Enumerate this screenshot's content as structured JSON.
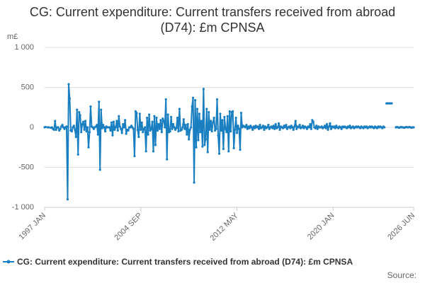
{
  "chart_data": {
    "type": "line",
    "title": "CG: Current expenditure: Current transfers received from abroad (D74): £m CPNSA",
    "y_label": "m£",
    "source": "Source:",
    "grid": true,
    "ylim": [
      -1000,
      1000
    ],
    "yticks": [
      {
        "value": -1000,
        "label": "-1 000"
      },
      -500,
      0,
      500,
      {
        "value": 1000,
        "label": "1 000"
      }
    ],
    "categories": [
      "1997 JAN",
      null,
      null,
      null,
      null,
      null,
      null,
      null,
      null,
      null,
      null,
      null,
      null,
      null,
      null,
      null,
      null,
      null,
      null,
      null,
      null,
      null,
      null,
      null,
      null,
      null,
      null,
      null,
      null,
      null,
      null,
      null,
      null,
      null,
      null,
      null,
      null,
      null,
      null,
      null,
      null,
      null,
      null,
      null,
      null,
      null,
      null,
      null,
      null,
      null,
      null,
      null,
      null,
      null,
      null,
      null,
      null,
      null,
      null,
      null,
      null,
      null,
      null,
      null,
      null,
      null,
      null,
      null,
      null,
      null,
      null,
      null,
      null,
      null,
      null,
      null,
      null,
      null,
      null,
      null,
      null,
      null,
      null,
      null,
      null,
      null,
      null,
      null,
      null,
      null,
      null,
      null,
      "2004 SEP",
      null,
      null,
      null,
      null,
      null,
      null,
      null,
      null,
      null,
      null,
      null,
      null,
      null,
      null,
      null,
      null,
      null,
      null,
      null,
      null,
      null,
      null,
      null,
      null,
      null,
      null,
      null,
      null,
      null,
      null,
      null,
      null,
      null,
      null,
      null,
      null,
      null,
      null,
      null,
      null,
      null,
      null,
      null,
      null,
      null,
      null,
      null,
      null,
      null,
      null,
      null,
      null,
      null,
      null,
      null,
      null,
      null,
      null,
      null,
      null,
      null,
      null,
      null,
      null,
      null,
      null,
      null,
      null,
      null,
      null,
      null,
      null,
      null,
      null,
      null,
      null,
      null,
      null,
      null,
      null,
      null,
      null,
      null,
      null,
      null,
      null,
      null,
      null,
      null,
      null,
      null,
      "2012 MAY",
      null,
      null,
      null,
      null,
      null,
      null,
      null,
      null,
      null,
      null,
      null,
      null,
      null,
      null,
      null,
      null,
      null,
      null,
      null,
      null,
      null,
      null,
      null,
      null,
      null,
      null,
      null,
      null,
      null,
      null,
      null,
      null,
      null,
      null,
      null,
      null,
      null,
      null,
      null,
      null,
      null,
      null,
      null,
      null,
      null,
      null,
      null,
      null,
      null,
      null,
      null,
      null,
      null,
      null,
      null,
      null,
      null,
      null,
      null,
      null,
      null,
      null,
      null,
      null,
      null,
      null,
      null,
      null,
      null,
      null,
      null,
      null,
      null,
      null,
      null,
      null,
      null,
      null,
      null,
      null,
      null,
      null,
      null,
      null,
      null,
      null,
      null,
      null,
      null,
      null,
      null,
      "2020 JAN",
      null,
      null,
      null,
      null,
      null,
      null,
      null,
      null,
      null,
      null,
      null,
      null,
      null,
      null,
      null,
      null,
      null,
      null,
      null,
      null,
      null,
      null,
      null,
      null,
      null,
      null,
      null,
      null,
      null,
      null,
      null,
      null,
      null,
      null,
      null,
      null,
      null,
      null,
      null,
      null,
      null,
      null,
      null,
      null,
      null,
      null,
      null,
      null,
      null,
      null,
      null,
      null,
      null,
      null,
      null,
      null,
      null,
      null,
      null,
      null,
      null,
      null,
      null,
      null,
      null,
      null,
      null,
      null,
      null,
      null,
      null,
      null,
      null,
      null,
      null,
      null,
      "2026 JUN"
    ],
    "series": [
      {
        "name": "CG: Current expenditure: Current transfers received from abroad (D74): £m CPNSA",
        "color": "#1a7fc1",
        "values": [
          0,
          5,
          null,
          0,
          0,
          null,
          -5,
          0,
          -20,
          -30,
          80,
          -30,
          0,
          0,
          -40,
          -20,
          10,
          30,
          0,
          -20,
          0,
          10,
          -900,
          540,
          360,
          -40,
          -50,
          0,
          20,
          -30,
          -120,
          220,
          -340,
          190,
          150,
          -60,
          40,
          70,
          -30,
          80,
          -50,
          0,
          -250,
          -60,
          260,
          10,
          0,
          -20,
          0,
          10,
          30,
          -90,
          320,
          -530,
          220,
          -10,
          30,
          0,
          -50,
          10,
          0,
          0,
          0,
          -40,
          60,
          -100,
          70,
          -30,
          0,
          80,
          -40,
          140,
          10,
          -20,
          -70,
          40,
          0,
          90,
          -80,
          -30,
          -40,
          0,
          0,
          20,
          0,
          -20,
          -360,
          200,
          180,
          -30,
          -120,
          170,
          -30,
          60,
          -60,
          -20,
          0,
          -300,
          120,
          -90,
          160,
          -40,
          -20,
          70,
          -300,
          140,
          -220,
          120,
          -40,
          40,
          -20,
          90,
          -60,
          110,
          80,
          0,
          350,
          -400,
          160,
          -60,
          -50,
          130,
          -20,
          40,
          0,
          -30,
          -10,
          120,
          -50,
          230,
          -40,
          -30,
          0,
          100,
          -20,
          30,
          -90,
          40,
          -150,
          -30,
          0,
          260,
          370,
          -690,
          340,
          -250,
          230,
          -160,
          170,
          -60,
          80,
          -240,
          480,
          -220,
          -150,
          230,
          -310,
          190,
          -30,
          80,
          -50,
          60,
          120,
          -40,
          -20,
          350,
          -100,
          -330,
          170,
          -40,
          90,
          -270,
          130,
          -20,
          -60,
          140,
          -300,
          200,
          -50,
          190,
          200,
          -260,
          -30,
          120,
          -70,
          20,
          -20,
          -280,
          180,
          0,
          20,
          10,
          0,
          30,
          -20,
          10,
          -10,
          20,
          0,
          -30,
          10,
          -10,
          20,
          0,
          10,
          -20,
          30,
          -10,
          0,
          20,
          -30,
          10,
          -10,
          0,
          30,
          -20,
          0,
          10,
          -10,
          20,
          -20,
          40,
          -10,
          0,
          50,
          -30,
          10,
          0,
          -10,
          20,
          0,
          30,
          -20,
          0,
          10,
          -10,
          20,
          0,
          -30,
          10,
          80,
          -20,
          10,
          0,
          30,
          -10,
          0,
          20,
          -10,
          10,
          0,
          -20,
          10,
          0,
          40,
          -20,
          90,
          70,
          0,
          -10,
          20,
          -20,
          10,
          0,
          0,
          10,
          -10,
          0,
          20,
          -10,
          40,
          -30,
          10,
          50,
          -20,
          10,
          0,
          10,
          -10,
          20,
          0,
          -10,
          10,
          0,
          -20,
          10,
          0,
          10,
          0,
          -10,
          10,
          0,
          20,
          -10,
          0,
          10,
          -10,
          0,
          10,
          0,
          10,
          0,
          -10,
          10,
          0,
          -10,
          10,
          0,
          10,
          -10,
          0,
          10,
          0,
          10,
          0,
          -10,
          10,
          0,
          -10,
          10,
          0,
          10,
          0,
          -10,
          10,
          0,
          null,
          300,
          300,
          300,
          300,
          300,
          300,
          null,
          null,
          null,
          0,
          5,
          0,
          -5,
          0,
          5,
          0,
          0,
          -5,
          0,
          5,
          0,
          0,
          5,
          0,
          -5,
          0,
          0
        ]
      }
    ]
  }
}
